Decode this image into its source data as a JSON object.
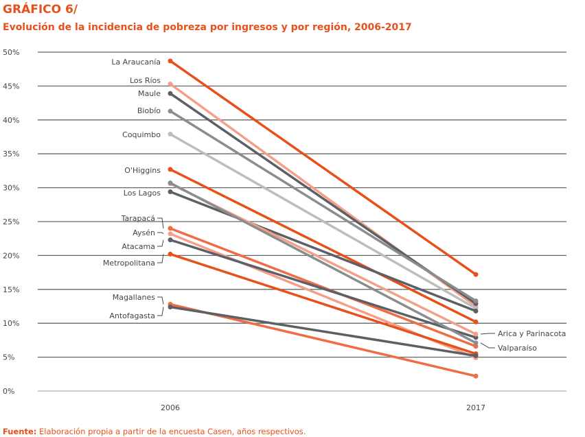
{
  "chart_data": {
    "type": "line",
    "title": "GRÁFICO 6/",
    "subtitle": "Evolución de la incidencia de pobreza por ingresos y por región, 2006-2017",
    "categories": [
      "2006",
      "2017"
    ],
    "ylim": [
      0,
      50
    ],
    "yticks": [
      "0%",
      "5%",
      "10%",
      "15%",
      "20%",
      "25%",
      "30%",
      "35%",
      "40%",
      "45%",
      "50%"
    ],
    "grid": true,
    "series": [
      {
        "name": "La Araucanía",
        "values": [
          48.7,
          17.2
        ],
        "color": "#e8501a"
      },
      {
        "name": "Los Ríos",
        "values": [
          45.3,
          12.5
        ],
        "color": "#f4a089"
      },
      {
        "name": "Maule",
        "values": [
          43.9,
          12.9
        ],
        "color": "#5c6066"
      },
      {
        "name": "Biobío",
        "values": [
          41.3,
          13.3
        ],
        "color": "#8a8d90"
      },
      {
        "name": "Coquimbo",
        "values": [
          37.9,
          12.2
        ],
        "color": "#bdbdbd"
      },
      {
        "name": "O'Higgins",
        "values": [
          32.7,
          10.2
        ],
        "color": "#e8501a"
      },
      {
        "name": "Los Lagos",
        "values": [
          29.4,
          11.8
        ],
        "color": "#5c6066"
      },
      {
        "name": "Tarapacá",
        "values": [
          24.0,
          6.6
        ],
        "color": "#ef6d45"
      },
      {
        "name": "Aysén",
        "values": [
          23.2,
          4.9
        ],
        "color": "#f4a089"
      },
      {
        "name": "Atacama",
        "values": [
          22.3,
          7.9
        ],
        "color": "#5c6066"
      },
      {
        "name": "Metropolitana",
        "values": [
          20.2,
          5.5
        ],
        "color": "#e8501a"
      },
      {
        "name": "Magallanes",
        "values": [
          12.8,
          2.2
        ],
        "color": "#ef6d45"
      },
      {
        "name": "Antofagasta",
        "values": [
          12.4,
          5.2
        ],
        "color": "#5c6066"
      },
      {
        "name": "Arica y Parinacota",
        "values": [
          30.6,
          8.4
        ],
        "color": "#f4a089"
      },
      {
        "name": "Valparaíso",
        "values": [
          30.7,
          7.1
        ],
        "color": "#8a8d90"
      }
    ]
  },
  "footer": {
    "label": "Fuente:",
    "text": " Elaboración propia a partir de la encuesta Casen, años respectivos."
  }
}
